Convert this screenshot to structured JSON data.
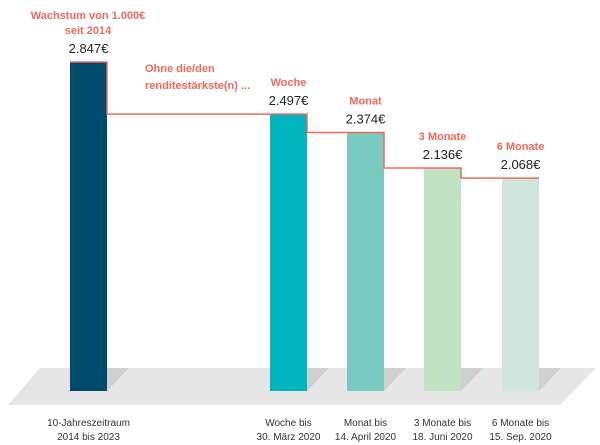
{
  "chart_data": {
    "type": "bar",
    "title": "Wachstum von 1.000€ seit 2014",
    "title_lines": [
      "Wachstum von 1.000€",
      "seit 2014"
    ],
    "annotation_lines": [
      "Ohne die/den",
      "renditestärkste(n) ..."
    ],
    "categories": [
      [
        "10-Jahreszeitraum",
        "2014 bis 2023"
      ],
      [
        "Woche bis",
        "30. März 2020"
      ],
      [
        "Monat bis",
        "14. April 2020"
      ],
      [
        "3 Monate bis",
        "18. Juni 2020"
      ],
      [
        "6 Monate bis",
        "15. Sep. 2020"
      ]
    ],
    "values": [
      2847,
      2497,
      2374,
      2136,
      2068
    ],
    "value_labels": [
      "2.847€",
      "2.497€",
      "2.374€",
      "2.136€",
      "2.068€"
    ],
    "bar_headers": [
      "",
      "Woche",
      "Monat",
      "3 Monate",
      "6 Monate"
    ],
    "colors": [
      "#004b6b",
      "#00b5bd",
      "#78cabe",
      "#c2e3c3",
      "#d0e4de"
    ],
    "accent_color": "#f0685a",
    "grid": false,
    "legend": "none"
  }
}
